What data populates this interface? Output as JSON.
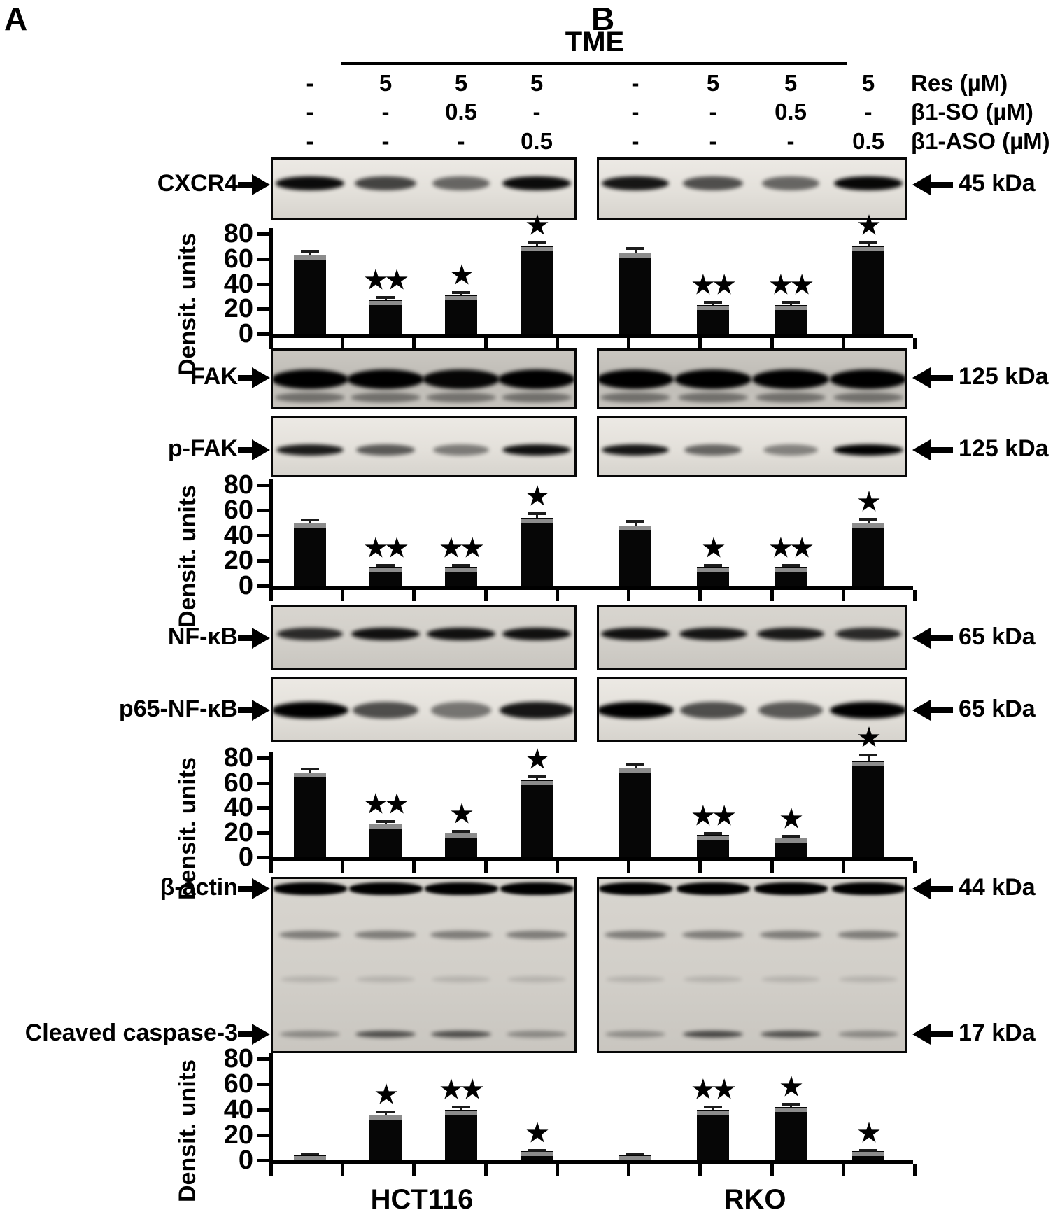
{
  "colors": {
    "ink": "#000000",
    "background": "#ffffff",
    "bar": "#060606",
    "blot_background": "#d8d5cf"
  },
  "header": {
    "panel_a": "A",
    "panel_b": "B",
    "tme": "TME",
    "treatment_rows": [
      {
        "label": "Res (µM)",
        "values": [
          "-",
          "5",
          "5",
          "5",
          "-",
          "5",
          "5",
          "5"
        ]
      },
      {
        "label": "β1-SO (µM)",
        "values": [
          "-",
          "-",
          "0.5",
          "-",
          "-",
          "-",
          "0.5",
          "-"
        ]
      },
      {
        "label": "β1-ASO (µM)",
        "values": [
          "-",
          "-",
          "-",
          "0.5",
          "-",
          "-",
          "-",
          "0.5"
        ]
      }
    ]
  },
  "blots": [
    {
      "protein": "CXCR4",
      "kda": "45 kDa",
      "lanes_a": [
        0.95,
        0.7,
        0.55,
        0.95
      ],
      "lanes_b": [
        0.9,
        0.65,
        0.55,
        0.97
      ]
    },
    {
      "protein": "FAK",
      "kda": "125 kDa",
      "lanes_a": [
        1,
        1,
        0.97,
        1
      ],
      "lanes_b": [
        1,
        1,
        1,
        1
      ]
    },
    {
      "protein": "p-FAK",
      "kda": "125 kDa",
      "lanes_a": [
        0.88,
        0.6,
        0.45,
        0.93
      ],
      "lanes_b": [
        0.9,
        0.55,
        0.42,
        1
      ]
    },
    {
      "protein": "NF-κB",
      "kda": "65 kDa",
      "lanes_a": [
        0.8,
        0.92,
        0.92,
        0.92
      ],
      "lanes_b": [
        0.92,
        0.9,
        0.88,
        0.8
      ]
    },
    {
      "protein": "p65-NF-κB",
      "kda": "65 kDa",
      "lanes_a": [
        1,
        0.65,
        0.48,
        0.9
      ],
      "lanes_b": [
        1,
        0.65,
        0.6,
        1
      ]
    },
    {
      "protein": "β-actin",
      "kda": "44 kDa",
      "lanes_a": [
        1,
        1,
        1,
        1
      ],
      "lanes_b": [
        1,
        1,
        1,
        1
      ]
    },
    {
      "protein": "Cleaved caspase-3",
      "kda": "17 kDa",
      "lanes_a": [
        0.32,
        0.62,
        0.62,
        0.32
      ],
      "lanes_b": [
        0.3,
        0.65,
        0.6,
        0.32
      ]
    }
  ],
  "chart_data": [
    {
      "type": "bar",
      "protein": "CXCR4",
      "ylabel": "Densit. units",
      "ylim": [
        0,
        80
      ],
      "yticks": [
        0,
        20,
        40,
        60,
        80
      ],
      "grid": false,
      "groups": [
        {
          "cell_line": "HCT116",
          "values": [
            63,
            27,
            31,
            70
          ],
          "errors": [
            3,
            2,
            2,
            3
          ],
          "significance": [
            "",
            "**",
            "*",
            "*"
          ]
        },
        {
          "cell_line": "RKO",
          "values": [
            65,
            23,
            23,
            70
          ],
          "errors": [
            3,
            2,
            2,
            3
          ],
          "significance": [
            "",
            "**",
            "**",
            "*"
          ]
        }
      ]
    },
    {
      "type": "bar",
      "protein": "p-FAK",
      "ylabel": "Densit. units",
      "ylim": [
        0,
        80
      ],
      "yticks": [
        0,
        20,
        40,
        60,
        80
      ],
      "grid": false,
      "groups": [
        {
          "cell_line": "HCT116",
          "values": [
            50,
            15,
            15,
            54
          ],
          "errors": [
            2,
            1,
            1,
            3
          ],
          "significance": [
            "",
            "**",
            "**",
            "*"
          ]
        },
        {
          "cell_line": "RKO",
          "values": [
            48,
            15,
            15,
            50
          ],
          "errors": [
            3,
            1,
            1,
            3
          ],
          "significance": [
            "",
            "*",
            "**",
            "*"
          ]
        }
      ]
    },
    {
      "type": "bar",
      "protein": "p65-NF-κB",
      "ylabel": "Densit. units",
      "ylim": [
        0,
        80
      ],
      "yticks": [
        0,
        20,
        40,
        60,
        80
      ],
      "grid": false,
      "groups": [
        {
          "cell_line": "HCT116",
          "values": [
            68,
            27,
            20,
            62
          ],
          "errors": [
            3,
            2,
            1,
            3
          ],
          "significance": [
            "",
            "**",
            "*",
            "*"
          ]
        },
        {
          "cell_line": "RKO",
          "values": [
            72,
            18,
            16,
            77
          ],
          "errors": [
            3,
            1,
            1,
            5
          ],
          "significance": [
            "",
            "**",
            "*",
            "*"
          ]
        }
      ]
    },
    {
      "type": "bar",
      "protein": "Cleaved caspase-3",
      "ylabel": "Densit. units",
      "ylim": [
        0,
        80
      ],
      "yticks": [
        0,
        20,
        40,
        60,
        80
      ],
      "grid": false,
      "groups": [
        {
          "cell_line": "HCT116",
          "values": [
            4,
            36,
            40,
            7
          ],
          "errors": [
            1,
            2,
            2,
            1
          ],
          "significance": [
            "",
            "*",
            "**",
            "*"
          ]
        },
        {
          "cell_line": "RKO",
          "values": [
            4,
            40,
            42,
            7
          ],
          "errors": [
            1,
            2,
            2,
            1
          ],
          "significance": [
            "",
            "**",
            "*",
            "*"
          ]
        }
      ]
    }
  ],
  "footer": {
    "cell_lines": [
      "HCT116",
      "RKO"
    ]
  }
}
